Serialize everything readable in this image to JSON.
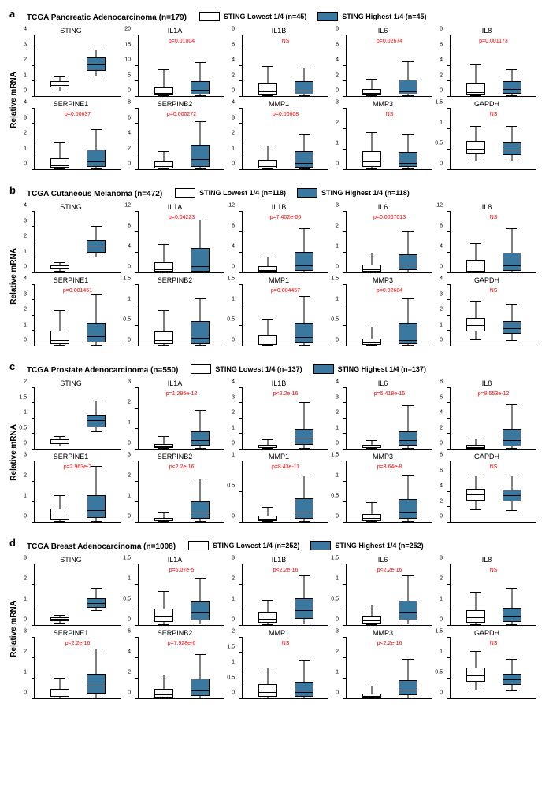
{
  "colors": {
    "low": "#ffffff",
    "high": "#3a78a0",
    "pvalue": "#ff0000",
    "axis": "#000000",
    "bg": "#ffffff"
  },
  "ylabel": "Relative mRNA",
  "legendLowPrefix": "STING Lowest 1/4 (n=",
  "legendHighPrefix": "STING Highest 1/4 (n=",
  "sections": [
    {
      "letter": "a",
      "cohort": "TCGA Pancreatic Adenocarcinoma (n=179)",
      "nLow": 45,
      "nHigh": 45,
      "panels": [
        {
          "gene": "STING",
          "p": null,
          "ymax": 4,
          "low": {
            "q1": 0.55,
            "med": 0.7,
            "q3": 0.95,
            "lo": 0.35,
            "hi": 1.25
          },
          "high": {
            "q1": 1.65,
            "med": 2.1,
            "q3": 2.5,
            "lo": 1.3,
            "hi": 3.0
          }
        },
        {
          "gene": "IL1A",
          "p": "p=0.01004",
          "ymax": 20,
          "low": {
            "q1": 0.3,
            "med": 1.0,
            "q3": 2.8,
            "lo": 0.05,
            "hi": 8.5
          },
          "high": {
            "q1": 0.4,
            "med": 1.8,
            "q3": 5.0,
            "lo": 0.05,
            "hi": 11.0
          }
        },
        {
          "gene": "IL1B",
          "p": "NS",
          "ymax": 8,
          "low": {
            "q1": 0.15,
            "med": 0.55,
            "q3": 1.6,
            "lo": 0.02,
            "hi": 3.8
          },
          "high": {
            "q1": 0.2,
            "med": 0.7,
            "q3": 2.0,
            "lo": 0.02,
            "hi": 3.6
          }
        },
        {
          "gene": "IL6",
          "p": "p=0.02674",
          "ymax": 8,
          "low": {
            "q1": 0.1,
            "med": 0.35,
            "q3": 0.9,
            "lo": 0.02,
            "hi": 2.2
          },
          "high": {
            "q1": 0.2,
            "med": 0.6,
            "q3": 2.2,
            "lo": 0.02,
            "hi": 4.5
          }
        },
        {
          "gene": "IL8",
          "p": "p=0.001173",
          "ymax": 8,
          "low": {
            "q1": 0.15,
            "med": 0.5,
            "q3": 1.6,
            "lo": 0.02,
            "hi": 4.2
          },
          "high": {
            "q1": 0.3,
            "med": 0.9,
            "q3": 2.0,
            "lo": 0.05,
            "hi": 3.4
          }
        },
        {
          "gene": "SERPINE1",
          "p": "p=0.00637",
          "ymax": 4,
          "low": {
            "q1": 0.08,
            "med": 0.25,
            "q3": 0.7,
            "lo": 0.02,
            "hi": 1.7
          },
          "high": {
            "q1": 0.15,
            "med": 0.5,
            "q3": 1.3,
            "lo": 0.02,
            "hi": 2.6
          }
        },
        {
          "gene": "SERPINB2",
          "p": "p=0.000272",
          "ymax": 8,
          "low": {
            "q1": 0.1,
            "med": 0.35,
            "q3": 1.0,
            "lo": 0.02,
            "hi": 2.3
          },
          "high": {
            "q1": 0.3,
            "med": 1.3,
            "q3": 3.2,
            "lo": 0.02,
            "hi": 6.2
          }
        },
        {
          "gene": "MMP1",
          "p": "p=0.00608",
          "ymax": 4,
          "low": {
            "q1": 0.05,
            "med": 0.2,
            "q3": 0.6,
            "lo": 0.01,
            "hi": 1.5
          },
          "high": {
            "q1": 0.1,
            "med": 0.4,
            "q3": 1.2,
            "lo": 0.01,
            "hi": 2.3
          }
        },
        {
          "gene": "MMP3",
          "p": "NS",
          "ymax": 3,
          "low": {
            "q1": 0.1,
            "med": 0.35,
            "q3": 0.9,
            "lo": 0.02,
            "hi": 1.8
          },
          "high": {
            "q1": 0.1,
            "med": 0.3,
            "q3": 0.85,
            "lo": 0.02,
            "hi": 1.7
          }
        },
        {
          "gene": "GAPDH",
          "p": "NS",
          "ymax": 1.5,
          "low": {
            "q1": 0.38,
            "med": 0.5,
            "q3": 0.7,
            "lo": 0.2,
            "hi": 1.05
          },
          "high": {
            "q1": 0.35,
            "med": 0.48,
            "q3": 0.65,
            "lo": 0.2,
            "hi": 1.05
          }
        }
      ]
    },
    {
      "letter": "b",
      "cohort": "TCGA Cutaneous Melanoma (n=472)",
      "nLow": 118,
      "nHigh": 118,
      "panels": [
        {
          "gene": "STING",
          "p": null,
          "ymax": 4,
          "low": {
            "q1": 0.2,
            "med": 0.3,
            "q3": 0.45,
            "lo": 0.1,
            "hi": 0.65
          },
          "high": {
            "q1": 1.3,
            "med": 1.7,
            "q3": 2.1,
            "lo": 1.0,
            "hi": 3.0
          }
        },
        {
          "gene": "IL1A",
          "p": "p=0.04223",
          "ymax": 12,
          "low": {
            "q1": 0.1,
            "med": 0.5,
            "q3": 2.0,
            "lo": 0.02,
            "hi": 5.5
          },
          "high": {
            "q1": 0.2,
            "med": 1.2,
            "q3": 4.8,
            "lo": 0.02,
            "hi": 10.2
          }
        },
        {
          "gene": "IL1B",
          "p": "p=7.402e-06",
          "ymax": 12,
          "low": {
            "q1": 0.1,
            "med": 0.4,
            "q3": 1.2,
            "lo": 0.02,
            "hi": 3.0
          },
          "high": {
            "q1": 0.3,
            "med": 1.3,
            "q3": 4.0,
            "lo": 0.02,
            "hi": 8.5
          }
        },
        {
          "gene": "IL6",
          "p": "p=0.0007013",
          "ymax": 3,
          "low": {
            "q1": 0.05,
            "med": 0.15,
            "q3": 0.4,
            "lo": 0.01,
            "hi": 0.95
          },
          "high": {
            "q1": 0.1,
            "med": 0.35,
            "q3": 0.9,
            "lo": 0.02,
            "hi": 2.0
          }
        },
        {
          "gene": "IL8",
          "p": "NS",
          "ymax": 12,
          "low": {
            "q1": 0.2,
            "med": 0.9,
            "q3": 2.4,
            "lo": 0.02,
            "hi": 5.6
          },
          "high": {
            "q1": 0.3,
            "med": 1.3,
            "q3": 3.8,
            "lo": 0.02,
            "hi": 8.5
          }
        },
        {
          "gene": "SERPINE1",
          "p": "p=0.001461",
          "ymax": 4,
          "low": {
            "q1": 0.1,
            "med": 0.35,
            "q3": 1.0,
            "lo": 0.02,
            "hi": 2.3
          },
          "high": {
            "q1": 0.2,
            "med": 0.6,
            "q3": 1.5,
            "lo": 0.02,
            "hi": 3.3
          }
        },
        {
          "gene": "SERPINB2",
          "p": null,
          "ymax": 1.5,
          "low": {
            "q1": 0.03,
            "med": 0.12,
            "q3": 0.35,
            "lo": 0.005,
            "hi": 0.85
          },
          "high": {
            "q1": 0.04,
            "med": 0.18,
            "q3": 0.6,
            "lo": 0.005,
            "hi": 1.15
          }
        },
        {
          "gene": "MMP1",
          "p": "p=0.004457",
          "ymax": 1.5,
          "low": {
            "q1": 0.02,
            "med": 0.08,
            "q3": 0.25,
            "lo": 0.005,
            "hi": 0.65
          },
          "high": {
            "q1": 0.05,
            "med": 0.2,
            "q3": 0.55,
            "lo": 0.005,
            "hi": 1.2
          }
        },
        {
          "gene": "MMP3",
          "p": "p=0.02684",
          "ymax": 1.5,
          "low": {
            "q1": 0.02,
            "med": 0.07,
            "q3": 0.18,
            "lo": 0.005,
            "hi": 0.45
          },
          "high": {
            "q1": 0.03,
            "med": 0.12,
            "q3": 0.55,
            "lo": 0.005,
            "hi": 1.15
          }
        },
        {
          "gene": "GAPDH",
          "p": "NS",
          "ymax": 4,
          "low": {
            "q1": 0.9,
            "med": 1.3,
            "q3": 1.8,
            "lo": 0.4,
            "hi": 2.9
          },
          "high": {
            "q1": 0.75,
            "med": 1.1,
            "q3": 1.6,
            "lo": 0.35,
            "hi": 2.7
          }
        }
      ]
    },
    {
      "letter": "c",
      "cohort": "TCGA Prostate Adenocarcinoma (n=550)",
      "nLow": 137,
      "nHigh": 137,
      "panels": [
        {
          "gene": "STING",
          "p": null,
          "ymax": 2,
          "low": {
            "q1": 0.15,
            "med": 0.22,
            "q3": 0.3,
            "lo": 0.08,
            "hi": 0.4
          },
          "high": {
            "q1": 0.7,
            "med": 0.9,
            "q3": 1.1,
            "lo": 0.55,
            "hi": 1.55
          }
        },
        {
          "gene": "IL1A",
          "p": "p=1.296e-12",
          "ymax": 3,
          "low": {
            "q1": 0.03,
            "med": 0.1,
            "q3": 0.25,
            "lo": 0.005,
            "hi": 0.6
          },
          "high": {
            "q1": 0.15,
            "med": 0.4,
            "q3": 0.85,
            "lo": 0.02,
            "hi": 1.85
          }
        },
        {
          "gene": "IL1B",
          "p": "p<2.2e-16",
          "ymax": 4,
          "low": {
            "q1": 0.03,
            "med": 0.1,
            "q3": 0.25,
            "lo": 0.005,
            "hi": 0.6
          },
          "high": {
            "q1": 0.25,
            "med": 0.65,
            "q3": 1.3,
            "lo": 0.03,
            "hi": 3.0
          }
        },
        {
          "gene": "IL6",
          "p": "p=5.418e-15",
          "ymax": 4,
          "low": {
            "q1": 0.03,
            "med": 0.1,
            "q3": 0.25,
            "lo": 0.005,
            "hi": 0.55
          },
          "high": {
            "q1": 0.2,
            "med": 0.55,
            "q3": 1.15,
            "lo": 0.03,
            "hi": 2.8
          }
        },
        {
          "gene": "IL8",
          "p": "p=8.553e-12",
          "ymax": 8,
          "low": {
            "q1": 0.05,
            "med": 0.2,
            "q3": 0.55,
            "lo": 0.01,
            "hi": 1.3
          },
          "high": {
            "q1": 0.35,
            "med": 1.1,
            "q3": 2.6,
            "lo": 0.03,
            "hi": 5.8
          }
        },
        {
          "gene": "SERPINE1",
          "p": "p=2.963e-7",
          "ymax": 3,
          "low": {
            "q1": 0.1,
            "med": 0.3,
            "q3": 0.65,
            "lo": 0.02,
            "hi": 1.3
          },
          "high": {
            "q1": 0.2,
            "med": 0.55,
            "q3": 1.3,
            "lo": 0.03,
            "hi": 2.7
          }
        },
        {
          "gene": "SERPINB2",
          "p": "p<2.2e-16",
          "ymax": 3,
          "low": {
            "q1": 0.02,
            "med": 0.08,
            "q3": 0.2,
            "lo": 0.005,
            "hi": 0.5
          },
          "high": {
            "q1": 0.15,
            "med": 0.45,
            "q3": 1.0,
            "lo": 0.02,
            "hi": 2.1
          }
        },
        {
          "gene": "MMP1",
          "p": "p=8.43e-11",
          "ymax": 1,
          "low": {
            "q1": 0.01,
            "med": 0.04,
            "q3": 0.1,
            "lo": 0.002,
            "hi": 0.24
          },
          "high": {
            "q1": 0.05,
            "med": 0.15,
            "q3": 0.38,
            "lo": 0.005,
            "hi": 0.75
          }
        },
        {
          "gene": "MMP3",
          "p": "p=3.64e-8",
          "ymax": 1.5,
          "low": {
            "q1": 0.02,
            "med": 0.08,
            "q3": 0.2,
            "lo": 0.005,
            "hi": 0.48
          },
          "high": {
            "q1": 0.08,
            "med": 0.25,
            "q3": 0.55,
            "lo": 0.01,
            "hi": 1.15
          }
        },
        {
          "gene": "GAPDH",
          "p": "NS",
          "ymax": 8,
          "low": {
            "q1": 2.8,
            "med": 3.5,
            "q3": 4.3,
            "lo": 1.6,
            "hi": 6.0
          },
          "high": {
            "q1": 2.7,
            "med": 3.4,
            "q3": 4.2,
            "lo": 1.5,
            "hi": 6.0
          }
        }
      ]
    },
    {
      "letter": "d",
      "cohort": "TCGA Breast Adenocarcinoma (n=1008)",
      "nLow": 252,
      "nHigh": 252,
      "panels": [
        {
          "gene": "STING",
          "p": null,
          "ymax": 3,
          "low": {
            "q1": 0.2,
            "med": 0.28,
            "q3": 0.38,
            "lo": 0.1,
            "hi": 0.5
          },
          "high": {
            "q1": 0.85,
            "med": 1.05,
            "q3": 1.3,
            "lo": 0.7,
            "hi": 1.8
          }
        },
        {
          "gene": "IL1A",
          "p": "p=6.07e-5",
          "ymax": 1.5,
          "low": {
            "q1": 0.08,
            "med": 0.2,
            "q3": 0.4,
            "lo": 0.01,
            "hi": 0.82
          },
          "high": {
            "q1": 0.12,
            "med": 0.3,
            "q3": 0.58,
            "lo": 0.02,
            "hi": 1.15
          }
        },
        {
          "gene": "IL1B",
          "p": "p<2.2e-16",
          "ymax": 3,
          "low": {
            "q1": 0.1,
            "med": 0.3,
            "q3": 0.6,
            "lo": 0.02,
            "hi": 1.2
          },
          "high": {
            "q1": 0.3,
            "med": 0.7,
            "q3": 1.3,
            "lo": 0.05,
            "hi": 2.4
          }
        },
        {
          "gene": "IL6",
          "p": "p<2.2e-16",
          "ymax": 1.5,
          "low": {
            "q1": 0.03,
            "med": 0.1,
            "q3": 0.22,
            "lo": 0.005,
            "hi": 0.5
          },
          "high": {
            "q1": 0.12,
            "med": 0.3,
            "q3": 0.6,
            "lo": 0.02,
            "hi": 1.2
          }
        },
        {
          "gene": "IL8",
          "p": "NS",
          "ymax": 3,
          "low": {
            "q1": 0.12,
            "med": 0.35,
            "q3": 0.75,
            "lo": 0.02,
            "hi": 1.6
          },
          "high": {
            "q1": 0.15,
            "med": 0.4,
            "q3": 0.85,
            "lo": 0.02,
            "hi": 1.8
          }
        },
        {
          "gene": "SERPINE1",
          "p": "p<2.2e-16",
          "ymax": 3,
          "low": {
            "q1": 0.08,
            "med": 0.2,
            "q3": 0.45,
            "lo": 0.01,
            "hi": 1.0
          },
          "high": {
            "q1": 0.25,
            "med": 0.6,
            "q3": 1.2,
            "lo": 0.03,
            "hi": 2.4
          }
        },
        {
          "gene": "SERPINB2",
          "p": "p=7.928e-6",
          "ymax": 6,
          "low": {
            "q1": 0.1,
            "med": 0.35,
            "q3": 0.95,
            "lo": 0.02,
            "hi": 2.3
          },
          "high": {
            "q1": 0.2,
            "med": 0.7,
            "q3": 1.9,
            "lo": 0.03,
            "hi": 4.3
          }
        },
        {
          "gene": "MMP1",
          "p": "NS",
          "ymax": 2,
          "low": {
            "q1": 0.05,
            "med": 0.18,
            "q3": 0.45,
            "lo": 0.01,
            "hi": 1.0
          },
          "high": {
            "q1": 0.06,
            "med": 0.2,
            "q3": 0.55,
            "lo": 0.01,
            "hi": 1.25
          }
        },
        {
          "gene": "MMP3",
          "p": "p<2.2e-16",
          "ymax": 3,
          "low": {
            "q1": 0.03,
            "med": 0.1,
            "q3": 0.25,
            "lo": 0.005,
            "hi": 0.6
          },
          "high": {
            "q1": 0.15,
            "med": 0.4,
            "q3": 0.9,
            "lo": 0.02,
            "hi": 1.9
          }
        },
        {
          "gene": "GAPDH",
          "p": "NS",
          "ymax": 1.5,
          "low": {
            "q1": 0.4,
            "med": 0.55,
            "q3": 0.75,
            "lo": 0.2,
            "hi": 1.15
          },
          "high": {
            "q1": 0.32,
            "med": 0.45,
            "q3": 0.6,
            "lo": 0.18,
            "hi": 0.95
          }
        }
      ]
    }
  ]
}
